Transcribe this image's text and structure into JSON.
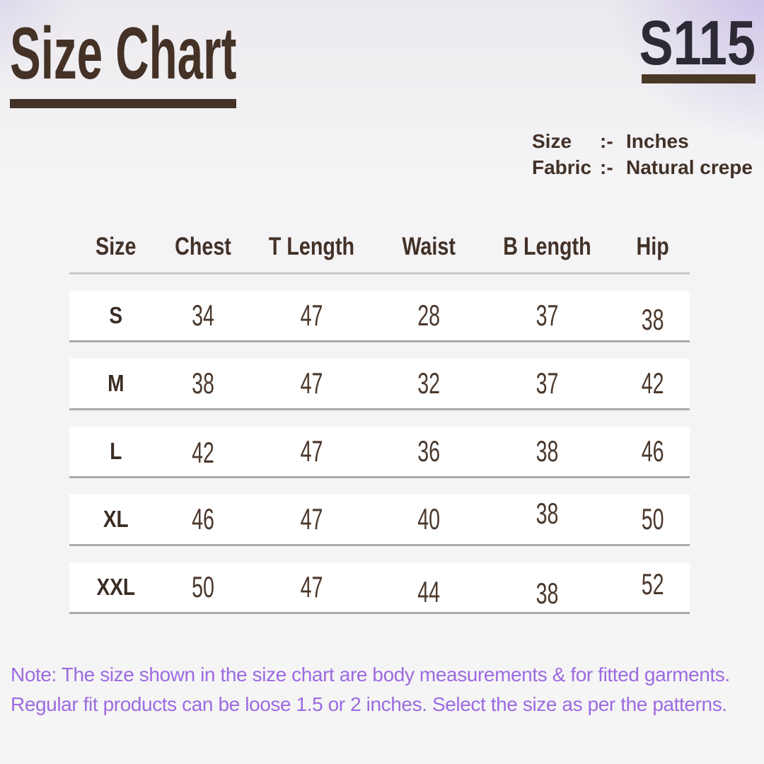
{
  "page": {
    "title": "Size Chart",
    "product_code": "S115"
  },
  "specs": {
    "rows": [
      {
        "label": "Size",
        "separator": ":-",
        "value": "Inches"
      },
      {
        "label": "Fabric",
        "separator": ":-",
        "value": "Natural crepe"
      }
    ]
  },
  "size_table": {
    "columns": [
      "Size",
      "Chest",
      "T Length",
      "Waist",
      "B Length",
      "Hip"
    ],
    "rows": [
      {
        "size": "S",
        "values": [
          "34",
          "47",
          "28",
          "37",
          "38"
        ]
      },
      {
        "size": "M",
        "values": [
          "38",
          "47",
          "32",
          "37",
          "42"
        ]
      },
      {
        "size": "L",
        "values": [
          "42",
          "47",
          "36",
          "38",
          "46"
        ]
      },
      {
        "size": "XL",
        "values": [
          "46",
          "47",
          "40",
          "38",
          "50"
        ]
      },
      {
        "size": "XXL",
        "values": [
          "50",
          "47",
          "44",
          "38",
          "52"
        ]
      }
    ]
  },
  "note": {
    "line1": "Note: The size shown in the size chart are body measurements & for fitted garments.",
    "line2": "Regular fit products can be loose 1.5 or 2 inches. Select the size as per the patterns."
  },
  "colors": {
    "title_brown": "#443226",
    "code_charcoal": "#2d2a35",
    "underline_brown": "#4a3827",
    "table_text_brown": "#4b382c",
    "note_purple": "#9c6be0",
    "row_background": "#ffffff",
    "row_border_gray": "#ababab",
    "page_background": "#f5f4f6",
    "corner_lavender": "#d8d0f0"
  }
}
